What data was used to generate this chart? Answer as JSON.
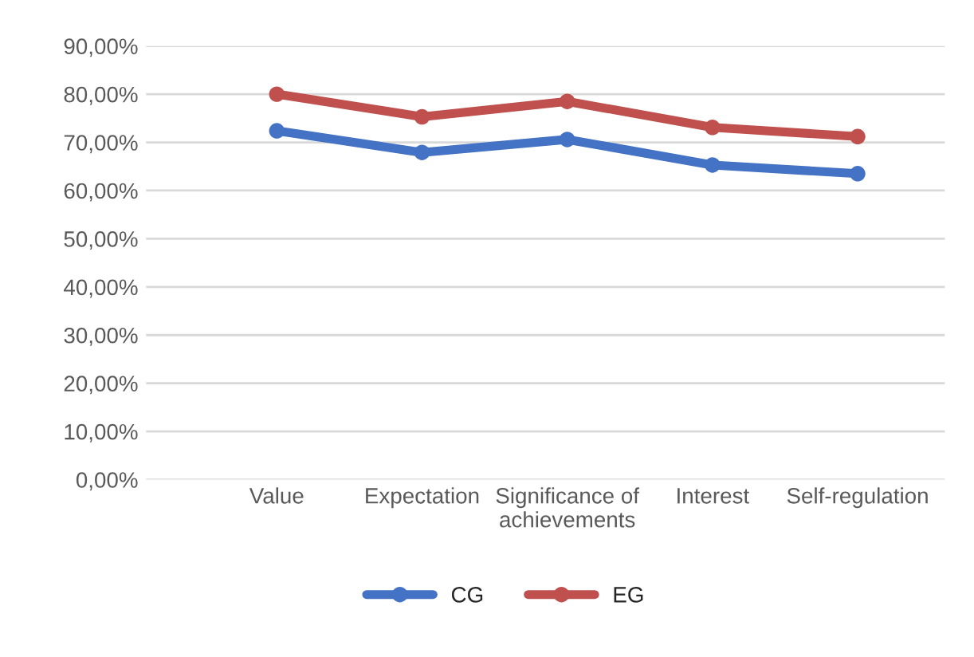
{
  "chart_data": {
    "type": "line",
    "categories": [
      "Value",
      "Expectation",
      "Significance of\nachievements",
      "Interest",
      "Self-regulation"
    ],
    "series": [
      {
        "name": "CG",
        "color": "#4472c4",
        "values": [
          72.4,
          67.9,
          70.6,
          65.3,
          63.5
        ]
      },
      {
        "name": "EG",
        "color": "#c0504d",
        "values": [
          80.0,
          75.3,
          78.5,
          73.1,
          71.2
        ]
      }
    ],
    "ylim": [
      0,
      90
    ],
    "yticks": [
      {
        "value": 0,
        "label": "0,00%"
      },
      {
        "value": 10,
        "label": "10,00%"
      },
      {
        "value": 20,
        "label": "20,00%"
      },
      {
        "value": 30,
        "label": "30,00%"
      },
      {
        "value": 40,
        "label": "40,00%"
      },
      {
        "value": 50,
        "label": "50,00%"
      },
      {
        "value": 60,
        "label": "60,00%"
      },
      {
        "value": 70,
        "label": "70,00%"
      },
      {
        "value": 80,
        "label": "80,00%"
      },
      {
        "value": 90,
        "label": "90,00%"
      }
    ],
    "grid": "y",
    "legend": "bottom",
    "marker": "circle",
    "line_style": "solid"
  }
}
